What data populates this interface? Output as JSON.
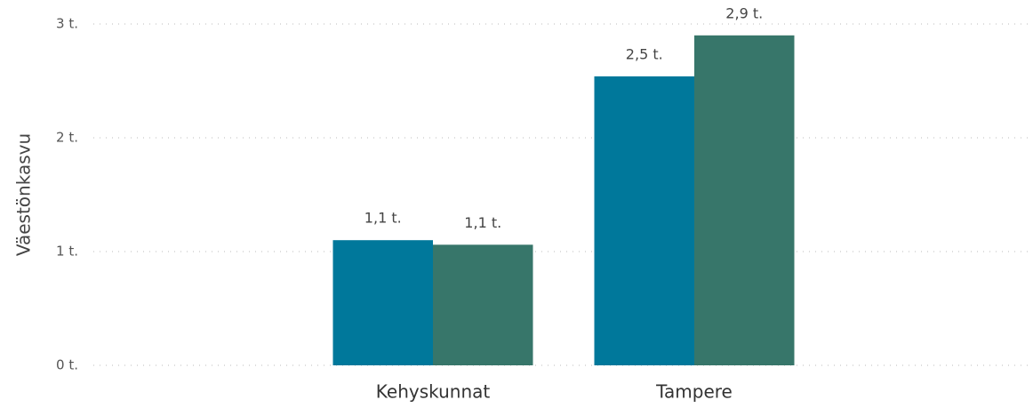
{
  "chart_data": {
    "type": "bar",
    "y_label": "Väestönkasvu",
    "categories": [
      "Kehyskunnat",
      "Tampere"
    ],
    "series": [
      {
        "color": "#00789b",
        "values": [
          1100,
          2540
        ],
        "value_labels": [
          "1,1 t.",
          "2,5 t."
        ]
      },
      {
        "color": "#37766a",
        "values": [
          1060,
          2900
        ],
        "value_labels": [
          "1,1 t.",
          "2,9 t."
        ]
      }
    ],
    "ylim": [
      0,
      3000
    ],
    "yticks": [
      {
        "value": 0,
        "label": "0 t."
      },
      {
        "value": 1000,
        "label": "1 t."
      },
      {
        "value": 2000,
        "label": "2 t."
      },
      {
        "value": 3000,
        "label": "3 t."
      }
    ],
    "grid": true
  }
}
